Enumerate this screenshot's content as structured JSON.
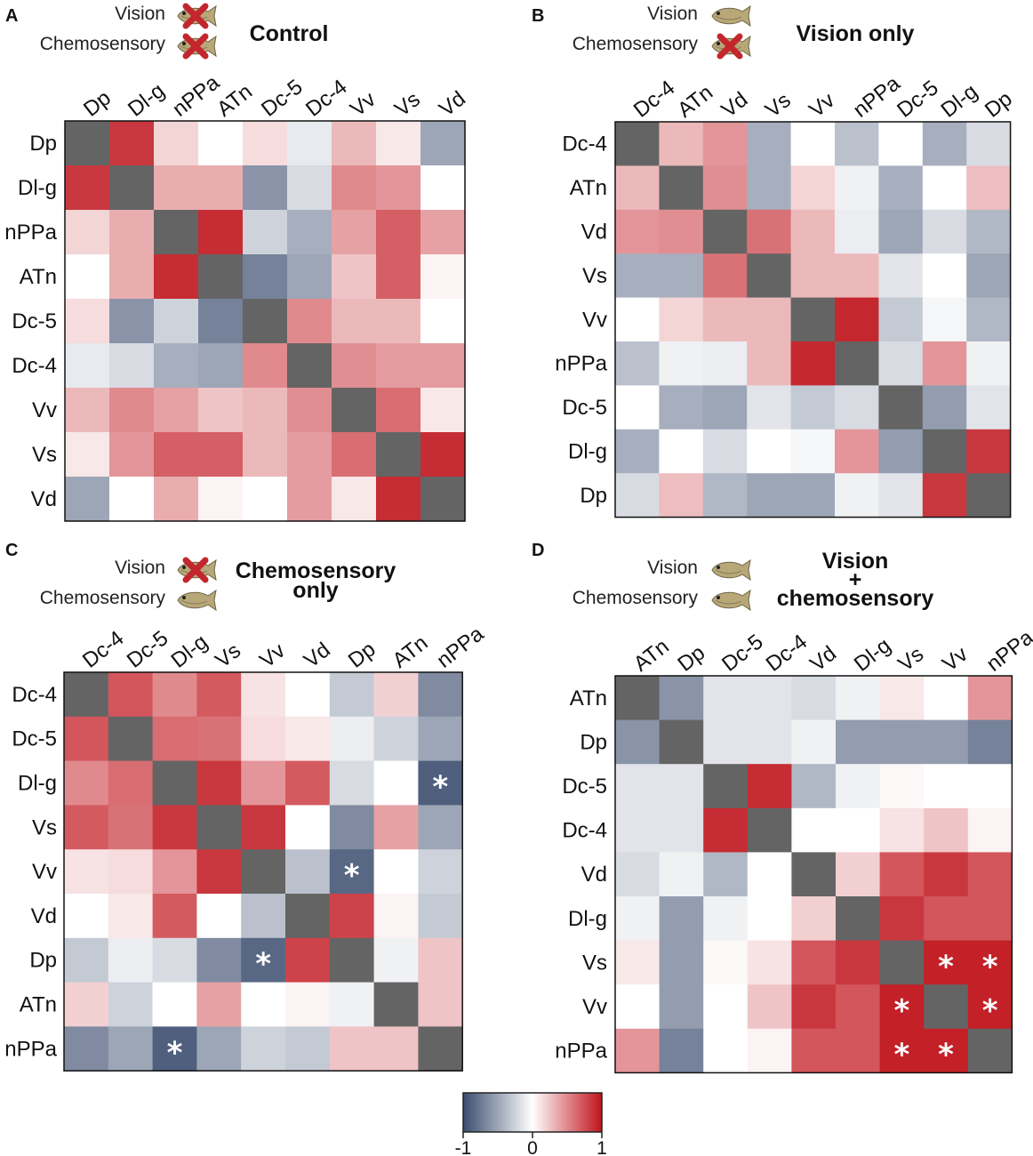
{
  "figure": {
    "legend": {
      "vision": "Vision",
      "chemosensory": "Chemosensory"
    },
    "colorbar": {
      "min_label": "-1",
      "mid_label": "0",
      "max_label": "1"
    }
  },
  "colors": {
    "low": "#3b4d6e",
    "mid": "#ffffff",
    "high": "#c0141c",
    "diagonal": "#646464"
  },
  "chart_data": [
    {
      "type": "heatmap",
      "letter": "A",
      "title_lines": [
        "Control"
      ],
      "vision_disabled": true,
      "chemo_disabled": true,
      "labels": [
        "Dp",
        "Dl-g",
        "nPPa",
        "ATn",
        "Dc-5",
        "Dc-4",
        "Vv",
        "Vs",
        "Vd"
      ],
      "matrix": [
        [
          null,
          0.85,
          0.18,
          0.0,
          0.15,
          -0.12,
          0.3,
          0.1,
          -0.5
        ],
        [
          0.85,
          null,
          0.35,
          0.35,
          -0.6,
          -0.2,
          0.5,
          0.45,
          0.0
        ],
        [
          0.18,
          0.35,
          null,
          0.9,
          -0.25,
          -0.45,
          0.4,
          0.68,
          0.4
        ],
        [
          0.0,
          0.35,
          0.9,
          null,
          -0.7,
          -0.5,
          0.25,
          0.68,
          0.05
        ],
        [
          0.15,
          -0.6,
          -0.25,
          -0.7,
          null,
          0.5,
          0.3,
          0.3,
          0.0
        ],
        [
          -0.12,
          -0.2,
          -0.45,
          -0.5,
          0.5,
          null,
          0.48,
          0.42,
          0.42
        ],
        [
          0.3,
          0.5,
          0.4,
          0.25,
          0.3,
          0.48,
          null,
          0.62,
          0.1
        ],
        [
          0.1,
          0.45,
          0.68,
          0.68,
          0.3,
          0.42,
          0.62,
          null,
          0.9
        ],
        [
          -0.5,
          0.0,
          0.35,
          0.05,
          0.0,
          0.42,
          0.1,
          0.9,
          null
        ]
      ],
      "significant": []
    },
    {
      "type": "heatmap",
      "letter": "B",
      "title_lines": [
        "Vision only"
      ],
      "vision_disabled": false,
      "chemo_disabled": true,
      "labels": [
        "Dc-4",
        "ATn",
        "Vd",
        "Vs",
        "Vv",
        "nPPa",
        "Dc-5",
        "Dl-g",
        "Dp"
      ],
      "matrix": [
        [
          null,
          0.3,
          0.45,
          -0.45,
          0.0,
          -0.35,
          0.0,
          -0.45,
          -0.2
        ],
        [
          0.3,
          null,
          0.48,
          -0.45,
          0.18,
          -0.08,
          -0.45,
          0.0,
          0.28
        ],
        [
          0.45,
          0.48,
          null,
          0.6,
          0.3,
          -0.1,
          -0.5,
          -0.2,
          -0.4
        ],
        [
          -0.45,
          -0.45,
          0.6,
          null,
          0.3,
          0.3,
          -0.15,
          0.0,
          -0.5
        ],
        [
          0.0,
          0.18,
          0.3,
          0.3,
          null,
          0.92,
          -0.3,
          -0.05,
          -0.4
        ],
        [
          -0.35,
          -0.08,
          -0.1,
          0.3,
          0.92,
          null,
          -0.2,
          0.45,
          -0.08
        ],
        [
          0.0,
          -0.45,
          -0.5,
          -0.15,
          -0.3,
          -0.2,
          null,
          -0.55,
          -0.15
        ],
        [
          -0.45,
          0.0,
          -0.2,
          0.0,
          -0.05,
          0.45,
          -0.55,
          null,
          0.85
        ],
        [
          -0.2,
          0.28,
          -0.4,
          -0.5,
          -0.5,
          -0.08,
          -0.15,
          0.85,
          null
        ]
      ],
      "significant": []
    },
    {
      "type": "heatmap",
      "letter": "C",
      "title_lines": [
        "Chemosensory",
        "only"
      ],
      "vision_disabled": true,
      "chemo_disabled": false,
      "labels": [
        "Dc-4",
        "Dc-5",
        "Dl-g",
        "Vs",
        "Vv",
        "Vd",
        "Dp",
        "ATn",
        "nPPa"
      ],
      "matrix": [
        [
          null,
          0.72,
          0.5,
          0.7,
          0.12,
          0.0,
          -0.3,
          0.2,
          -0.65
        ],
        [
          0.72,
          null,
          0.62,
          0.6,
          0.15,
          0.1,
          -0.1,
          -0.25,
          -0.5
        ],
        [
          0.5,
          0.62,
          null,
          0.85,
          0.45,
          0.7,
          -0.2,
          0.0,
          -0.9
        ],
        [
          0.7,
          0.6,
          0.85,
          null,
          0.85,
          0.0,
          -0.65,
          0.4,
          -0.5
        ],
        [
          0.12,
          0.15,
          0.45,
          0.85,
          null,
          -0.35,
          -0.85,
          0.0,
          -0.25
        ],
        [
          0.0,
          0.1,
          0.7,
          0.0,
          -0.35,
          null,
          0.8,
          0.05,
          -0.3
        ],
        [
          -0.3,
          -0.1,
          -0.2,
          -0.65,
          -0.85,
          0.8,
          null,
          -0.08,
          0.25
        ],
        [
          0.2,
          -0.25,
          0.0,
          0.4,
          0.0,
          0.05,
          -0.08,
          null,
          0.25
        ],
        [
          -0.65,
          -0.5,
          -0.9,
          -0.5,
          -0.25,
          -0.3,
          0.25,
          0.25,
          null
        ]
      ],
      "significant": [
        [
          2,
          8
        ],
        [
          8,
          2
        ],
        [
          4,
          6
        ],
        [
          6,
          4
        ]
      ]
    },
    {
      "type": "heatmap",
      "letter": "D",
      "title_lines": [
        "Vision",
        "+",
        "chemosensory"
      ],
      "vision_disabled": false,
      "chemo_disabled": false,
      "labels": [
        "ATn",
        "Dp",
        "Dc-5",
        "Dc-4",
        "Vd",
        "Dl-g",
        "Vs",
        "Vv",
        "nPPa"
      ],
      "matrix": [
        [
          null,
          -0.6,
          -0.15,
          -0.15,
          -0.2,
          -0.08,
          0.1,
          0.0,
          0.45
        ],
        [
          -0.6,
          null,
          -0.15,
          -0.15,
          -0.08,
          -0.55,
          -0.55,
          -0.55,
          -0.7
        ],
        [
          -0.15,
          -0.15,
          null,
          0.9,
          -0.4,
          -0.08,
          0.03,
          0.0,
          0.0
        ],
        [
          -0.15,
          -0.15,
          0.9,
          null,
          0.0,
          0.0,
          0.12,
          0.25,
          0.05
        ],
        [
          -0.2,
          -0.08,
          -0.4,
          0.0,
          null,
          0.2,
          0.72,
          0.85,
          0.72
        ],
        [
          -0.08,
          -0.55,
          -0.08,
          0.0,
          0.2,
          null,
          0.85,
          0.72,
          0.72
        ],
        [
          0.1,
          -0.55,
          0.03,
          0.12,
          0.72,
          0.85,
          null,
          0.95,
          0.95
        ],
        [
          0.0,
          -0.55,
          0.0,
          0.25,
          0.85,
          0.72,
          0.95,
          null,
          0.95
        ],
        [
          0.45,
          -0.7,
          0.0,
          0.05,
          0.72,
          0.72,
          0.95,
          0.95,
          null
        ]
      ],
      "significant": [
        [
          6,
          7
        ],
        [
          6,
          8
        ],
        [
          7,
          6
        ],
        [
          7,
          8
        ],
        [
          8,
          6
        ],
        [
          8,
          7
        ]
      ]
    }
  ]
}
